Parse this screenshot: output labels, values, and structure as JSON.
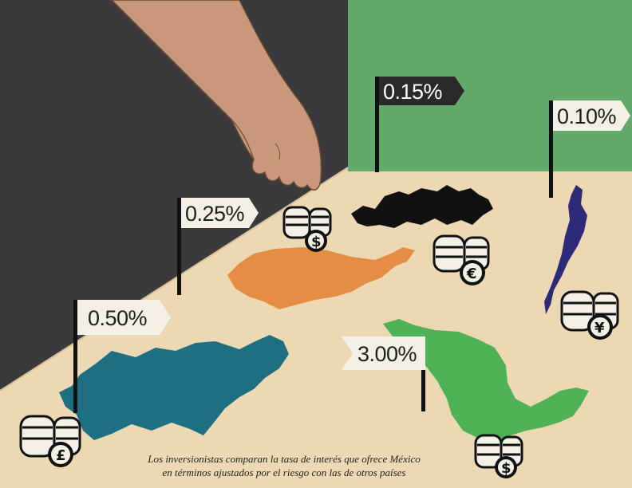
{
  "colors": {
    "background_dark": "#3a3a3c",
    "background_green": "#63a96b",
    "floor": "#ecd9b3",
    "usa": "#e58c45",
    "canada": "#1f6f82",
    "europe": "#111111",
    "japan": "#2e2a78",
    "mexico": "#4fb257",
    "skin": "#c9977a"
  },
  "flags": [
    {
      "id": "europe",
      "label": "0.15%",
      "style": "dark"
    },
    {
      "id": "japan",
      "label": "0.10%",
      "style": "light"
    },
    {
      "id": "usa",
      "label": "0.25%",
      "style": "light"
    },
    {
      "id": "canada",
      "label": "0.50%",
      "style": "light"
    },
    {
      "id": "mexico",
      "label": "3.00%",
      "style": "light"
    }
  ],
  "coins": [
    {
      "id": "usa",
      "symbol": "$",
      "icon": "dollar-icon"
    },
    {
      "id": "europe",
      "symbol": "€",
      "icon": "euro-icon"
    },
    {
      "id": "japan",
      "symbol": "¥",
      "icon": "yen-icon"
    },
    {
      "id": "canada",
      "symbol": "£",
      "icon": "pound-icon"
    },
    {
      "id": "mexico",
      "symbol": "$",
      "icon": "peso-icon"
    }
  ],
  "caption": {
    "line1": "Los inversionistas comparan la tasa de interés que ofrece México",
    "line2": "en términos ajustados por el riesgo con las de otros países"
  }
}
